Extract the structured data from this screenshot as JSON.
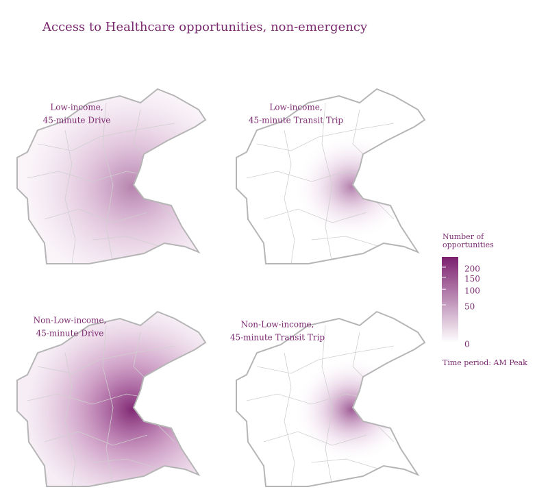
{
  "title": "Access to Healthcare opportunities, non-emergency",
  "panels": [
    {
      "label_lines": [
        "Low-income,",
        "45-minute Drive"
      ]
    },
    {
      "label_lines": [
        "Low-income,",
        "45-minute Transit Trip"
      ]
    },
    {
      "label_lines": [
        "Non-Low-income,",
        "45-minute Drive"
      ]
    },
    {
      "label_lines": [
        "Non-Low-income,",
        "45-minute Transit Trip"
      ]
    }
  ],
  "legend": {
    "title_lines": [
      "Number of",
      "opportunities"
    ],
    "scale": "sqrt",
    "lim": [
      0,
      258
    ],
    "ticks": [
      0,
      50,
      100,
      150,
      200
    ],
    "colors": [
      "#ffffff",
      "#7b1f6e"
    ]
  },
  "note": "Time period: AM Peak"
}
